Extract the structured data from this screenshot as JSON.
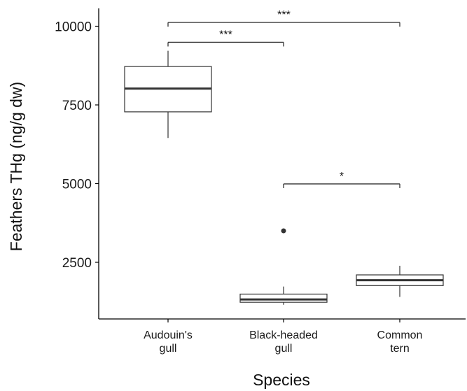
{
  "chart_data": {
    "type": "box",
    "xlabel": "Species",
    "ylabel": "Feathers THg (ng/g dw)",
    "ylim": [
      700,
      10400
    ],
    "yticks": [
      2500,
      5000,
      7500,
      10000
    ],
    "ytick_labels": [
      "2500",
      "5000",
      "7500",
      "10000"
    ],
    "grid": false,
    "categories": [
      {
        "id": "audouins",
        "label_lines": [
          "Audouin's",
          "gull"
        ]
      },
      {
        "id": "blackheaded",
        "label_lines": [
          "Black-headed",
          "gull"
        ]
      },
      {
        "id": "commontern",
        "label_lines": [
          "Common",
          "tern"
        ]
      }
    ],
    "boxes": [
      {
        "category": "audouins",
        "whisker_low": 6450,
        "q1": 7280,
        "median": 8020,
        "q3": 8720,
        "whisker_high": 9220,
        "outliers": []
      },
      {
        "category": "blackheaded",
        "whisker_low": 1150,
        "q1": 1230,
        "median": 1320,
        "q3": 1490,
        "whisker_high": 1730,
        "outliers": [
          3500
        ]
      },
      {
        "category": "commontern",
        "whisker_low": 1400,
        "q1": 1760,
        "median": 1930,
        "q3": 2100,
        "whisker_high": 2390,
        "outliers": []
      }
    ],
    "significance": [
      {
        "from": "audouins",
        "to": "commontern",
        "y": 10120,
        "label": "***"
      },
      {
        "from": "audouins",
        "to": "blackheaded",
        "y": 9490,
        "label": "***"
      },
      {
        "from": "blackheaded",
        "to": "commontern",
        "y": 4990,
        "label": "*"
      }
    ],
    "colors": {
      "box_fill": "#ffffff",
      "stroke": "#333333",
      "axis": "#000000",
      "text": "#1a1a1a"
    }
  }
}
